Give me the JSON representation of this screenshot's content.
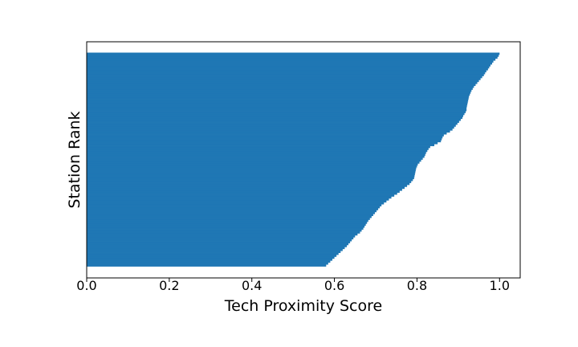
{
  "chart_data": {
    "type": "bar",
    "orientation": "horizontal",
    "xlabel": "Tech Proximity Score",
    "ylabel": "Station Rank",
    "xlim": [
      0.0,
      1.05
    ],
    "xticks": [
      "0.0",
      "0.2",
      "0.4",
      "0.6",
      "0.8",
      "1.0"
    ],
    "ytick_labels": "none",
    "grid": false,
    "legend": "none",
    "bar_color": "#1f77b4",
    "values": [
      1.0,
      0.998,
      0.995,
      0.99,
      0.985,
      0.982,
      0.978,
      0.975,
      0.972,
      0.968,
      0.965,
      0.962,
      0.958,
      0.954,
      0.95,
      0.946,
      0.942,
      0.938,
      0.935,
      0.932,
      0.93,
      0.928,
      0.926,
      0.925,
      0.924,
      0.923,
      0.922,
      0.921,
      0.92,
      0.92,
      0.918,
      0.915,
      0.912,
      0.91,
      0.906,
      0.902,
      0.898,
      0.894,
      0.89,
      0.886,
      0.88,
      0.872,
      0.865,
      0.862,
      0.86,
      0.858,
      0.85,
      0.842,
      0.832,
      0.828,
      0.825,
      0.822,
      0.82,
      0.818,
      0.814,
      0.81,
      0.806,
      0.802,
      0.8,
      0.798,
      0.797,
      0.796,
      0.795,
      0.794,
      0.793,
      0.79,
      0.786,
      0.782,
      0.776,
      0.77,
      0.764,
      0.758,
      0.752,
      0.745,
      0.738,
      0.732,
      0.726,
      0.72,
      0.714,
      0.71,
      0.706,
      0.702,
      0.698,
      0.694,
      0.69,
      0.686,
      0.682,
      0.679,
      0.676,
      0.673,
      0.67,
      0.666,
      0.662,
      0.656,
      0.65,
      0.646,
      0.642,
      0.638,
      0.634,
      0.63,
      0.625,
      0.62,
      0.615,
      0.61,
      0.605,
      0.6,
      0.595,
      0.59,
      0.585,
      0.58
    ]
  }
}
